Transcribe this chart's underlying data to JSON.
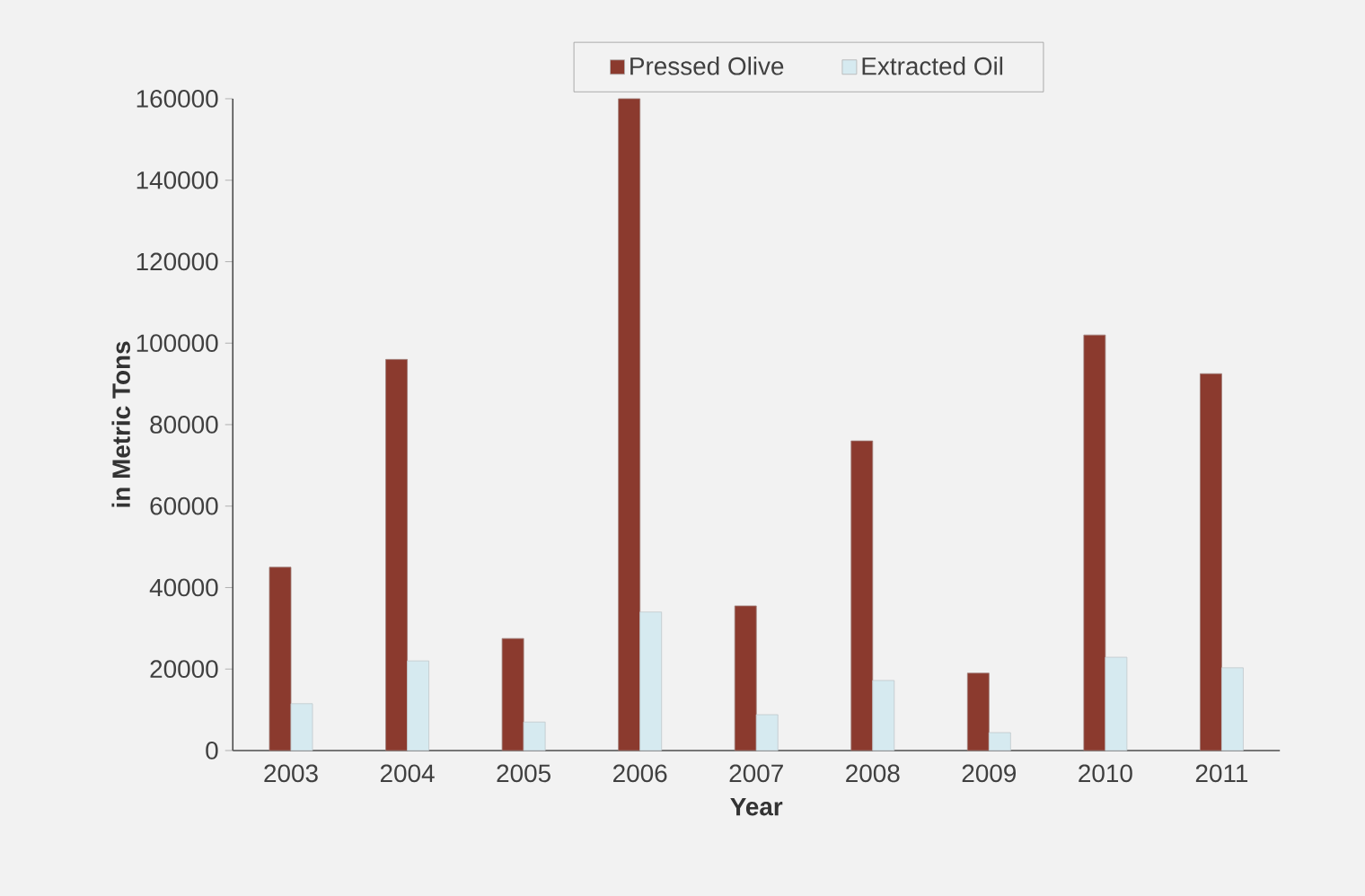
{
  "chart_data": {
    "type": "bar",
    "xlabel": "Year",
    "ylabel": "in Metric Tons",
    "categories": [
      "2003",
      "2004",
      "2005",
      "2006",
      "2007",
      "2008",
      "2009",
      "2010",
      "2011"
    ],
    "series": [
      {
        "name": "Pressed Olive",
        "color": "#8b3a2e",
        "values": [
          45000,
          96000,
          27500,
          160000,
          35500,
          76000,
          19000,
          102000,
          92500
        ]
      },
      {
        "name": "Extracted Oil",
        "color": "#d6eaf0",
        "values": [
          11500,
          22000,
          7000,
          34000,
          8800,
          17200,
          4400,
          22900,
          20300
        ]
      }
    ],
    "ylim": [
      0,
      160000
    ],
    "yticks": [
      0,
      20000,
      40000,
      60000,
      80000,
      100000,
      120000,
      140000,
      160000
    ],
    "grid": false,
    "legend": "top"
  }
}
